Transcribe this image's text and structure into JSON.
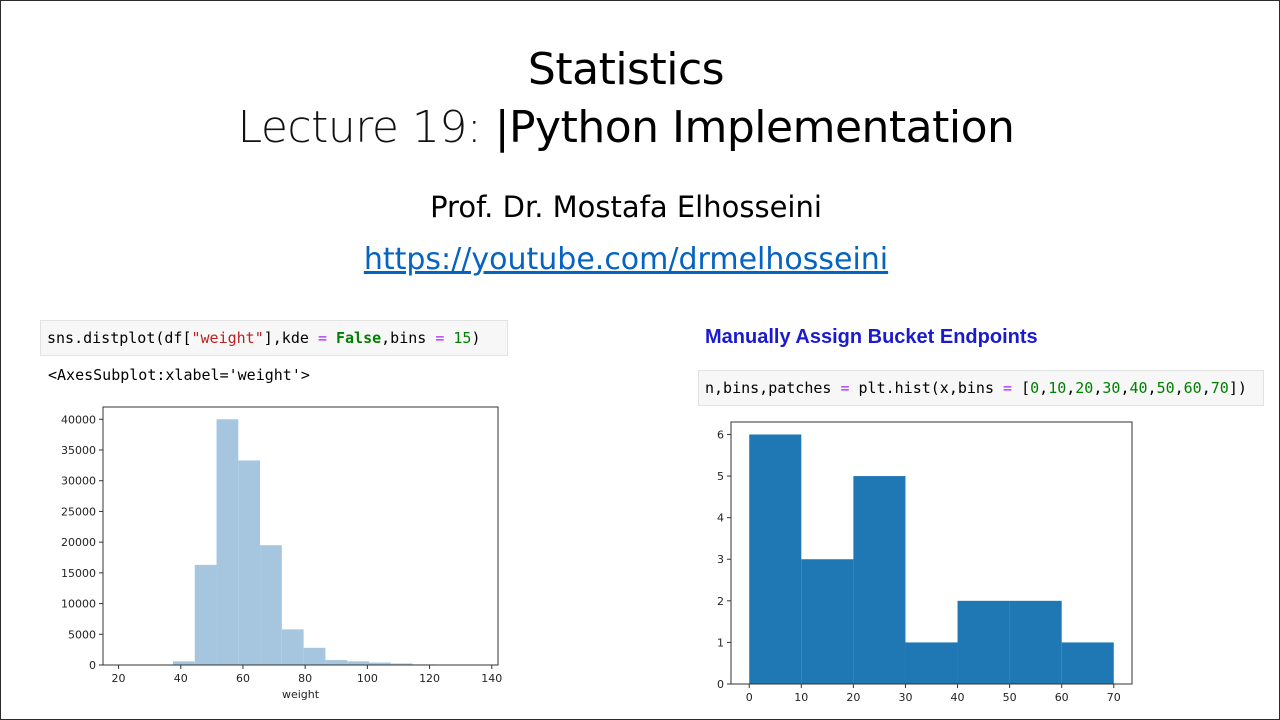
{
  "slide": {
    "title_line1": "Statistics",
    "title_line2_prefix": "Lecture 19: ",
    "title_line2_main": "|Python Implementation",
    "author": "Prof. Dr. Mostafa Elhosseini",
    "link": "https://youtube.com/drmelhosseini"
  },
  "left_panel": {
    "code_tokens": [
      {
        "text": "sns.distplot(df[",
        "cls": ""
      },
      {
        "text": "\"weight\"",
        "cls": "str"
      },
      {
        "text": "],kde ",
        "cls": ""
      },
      {
        "text": "=",
        "cls": "op"
      },
      {
        "text": " ",
        "cls": ""
      },
      {
        "text": "False",
        "cls": "kw"
      },
      {
        "text": ",bins ",
        "cls": ""
      },
      {
        "text": "=",
        "cls": "op"
      },
      {
        "text": " ",
        "cls": ""
      },
      {
        "text": "15",
        "cls": "num"
      },
      {
        "text": ")",
        "cls": ""
      }
    ],
    "output_text": "<AxesSubplot:xlabel='weight'>"
  },
  "right_panel": {
    "heading": "Manually Assign Bucket Endpoints",
    "code_tokens": [
      {
        "text": "n,bins,patches ",
        "cls": ""
      },
      {
        "text": "=",
        "cls": "op"
      },
      {
        "text": " plt.hist(x,bins ",
        "cls": ""
      },
      {
        "text": "=",
        "cls": "op"
      },
      {
        "text": " [",
        "cls": ""
      },
      {
        "text": "0",
        "cls": "num"
      },
      {
        "text": ",",
        "cls": ""
      },
      {
        "text": "10",
        "cls": "num"
      },
      {
        "text": ",",
        "cls": ""
      },
      {
        "text": "20",
        "cls": "num"
      },
      {
        "text": ",",
        "cls": ""
      },
      {
        "text": "30",
        "cls": "num"
      },
      {
        "text": ",",
        "cls": ""
      },
      {
        "text": "40",
        "cls": "num"
      },
      {
        "text": ",",
        "cls": ""
      },
      {
        "text": "50",
        "cls": "num"
      },
      {
        "text": ",",
        "cls": ""
      },
      {
        "text": "60",
        "cls": "num"
      },
      {
        "text": ",",
        "cls": ""
      },
      {
        "text": "70",
        "cls": "num"
      },
      {
        "text": "])",
        "cls": ""
      }
    ]
  },
  "chart_data": [
    {
      "type": "bar",
      "title": "",
      "xlabel": "weight",
      "ylabel": "",
      "xlim": [
        15,
        142
      ],
      "ylim": [
        0,
        42000
      ],
      "xticks": [
        20,
        40,
        60,
        80,
        100,
        120,
        140
      ],
      "yticks": [
        0,
        5000,
        10000,
        15000,
        20000,
        25000,
        30000,
        35000,
        40000
      ],
      "bar_color": "#a6c6df",
      "bins": [
        {
          "x0": 37.5,
          "x1": 44.5,
          "value": 600
        },
        {
          "x0": 44.5,
          "x1": 51.5,
          "value": 16300
        },
        {
          "x0": 51.5,
          "x1": 58.5,
          "value": 40000
        },
        {
          "x0": 58.5,
          "x1": 65.5,
          "value": 33300
        },
        {
          "x0": 65.5,
          "x1": 72.5,
          "value": 19500
        },
        {
          "x0": 72.5,
          "x1": 79.5,
          "value": 5800
        },
        {
          "x0": 79.5,
          "x1": 86.5,
          "value": 2800
        },
        {
          "x0": 86.5,
          "x1": 93.5,
          "value": 800
        },
        {
          "x0": 93.5,
          "x1": 100.5,
          "value": 600
        },
        {
          "x0": 100.5,
          "x1": 107.5,
          "value": 400
        },
        {
          "x0": 107.5,
          "x1": 114.5,
          "value": 250
        },
        {
          "x0": 114.5,
          "x1": 121.5,
          "value": 100
        },
        {
          "x0": 121.5,
          "x1": 128.5,
          "value": 60
        },
        {
          "x0": 128.5,
          "x1": 135.5,
          "value": 30
        },
        {
          "x0": 135.5,
          "x1": 142.5,
          "value": 10
        }
      ]
    },
    {
      "type": "bar",
      "title": "",
      "xlabel": "",
      "ylabel": "",
      "xlim": [
        -3.5,
        73.5
      ],
      "ylim": [
        0,
        6.3
      ],
      "xticks": [
        0,
        10,
        20,
        30,
        40,
        50,
        60,
        70
      ],
      "yticks": [
        0,
        1,
        2,
        3,
        4,
        5,
        6
      ],
      "bar_color": "#1f77b4",
      "bins": [
        {
          "x0": 0,
          "x1": 10,
          "value": 6
        },
        {
          "x0": 10,
          "x1": 20,
          "value": 3
        },
        {
          "x0": 20,
          "x1": 30,
          "value": 5
        },
        {
          "x0": 30,
          "x1": 40,
          "value": 1
        },
        {
          "x0": 40,
          "x1": 50,
          "value": 2
        },
        {
          "x0": 50,
          "x1": 60,
          "value": 2
        },
        {
          "x0": 60,
          "x1": 70,
          "value": 1
        }
      ]
    }
  ]
}
